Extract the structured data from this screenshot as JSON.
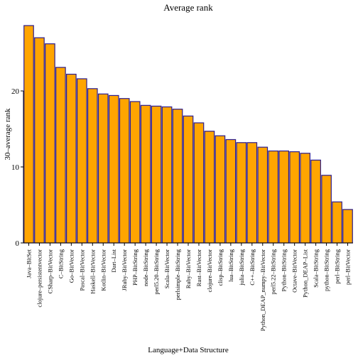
{
  "chart_data": {
    "type": "bar",
    "title": "Average rank",
    "xlabel": "Language+Data Structure",
    "ylabel": "30–average rank",
    "ylim": [
      0,
      28.6
    ],
    "yticks": [
      0,
      10,
      20
    ],
    "grid": false,
    "legend": "none",
    "bar_fill": "#FFA500",
    "bar_stroke": "#2B1C8F",
    "categories": [
      "Java–BitSet",
      "clojure–persistentvector",
      "CSharp–BitVector",
      "C–BitString",
      "Go–BitVector",
      "Pascal–BitVector",
      "Haskell–BitVector",
      "Kotlin–BitVector",
      "Dart–List",
      "JRuby–BitVector",
      "PHP–BitString",
      "node–BitString",
      "perl5.20–BitString",
      "Scala–BitVector",
      "perlsimple–BitString",
      "Ruby–BitVector",
      "Rust–BitVector",
      "clojure–BitVector",
      "clisp–BitString",
      "lua–BitString",
      "julia–BitString",
      "C++–BitString",
      "Python_DEAP_numpy–BitVector",
      "perl5.22–BitString",
      "Python–BitString",
      "Octave–BitVector",
      "Python_DEAP–List",
      "Scala–BitString",
      "python–BitString",
      "perl–BitString",
      "perl–BitVector"
    ],
    "values": [
      28.6,
      27.0,
      26.2,
      23.1,
      22.2,
      21.6,
      20.3,
      19.6,
      19.4,
      19.0,
      18.6,
      18.1,
      18.0,
      17.9,
      17.6,
      16.7,
      15.8,
      14.7,
      14.1,
      13.6,
      13.2,
      13.2,
      12.6,
      12.1,
      12.1,
      12.0,
      11.8,
      10.9,
      8.9,
      5.4,
      4.4
    ]
  }
}
